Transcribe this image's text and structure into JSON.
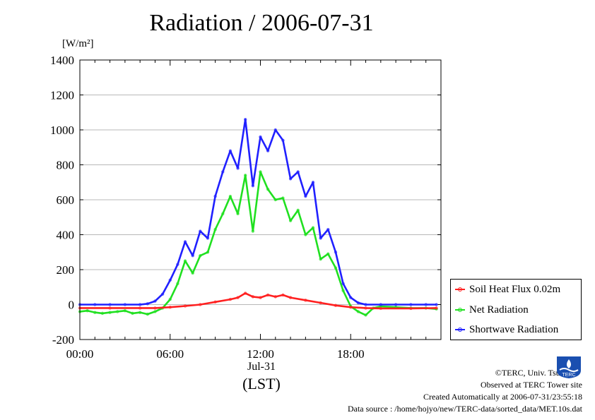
{
  "chart_data": {
    "type": "line",
    "title": "Radiation / 2006-07-31",
    "ylabel": "[W/m²]",
    "xlabel": "(LST)",
    "x_date_label": "Jul-31",
    "ylim": [
      -200,
      1400
    ],
    "xlim": [
      "00:00",
      "24:00"
    ],
    "yticks": [
      -200,
      0,
      200,
      400,
      600,
      800,
      1000,
      1200,
      1400
    ],
    "xticks": [
      "00:00",
      "06:00",
      "12:00",
      "18:00"
    ],
    "grid": true,
    "legend_position": "right",
    "series": [
      {
        "name": "Soil Heat Flux 0.02m",
        "color": "#ff2020",
        "x_hours": [
          0,
          2,
          4,
          5,
          6,
          7,
          8,
          9,
          10,
          10.5,
          11,
          11.5,
          12,
          12.5,
          13,
          13.5,
          14,
          15,
          16,
          17,
          18,
          19,
          20,
          22,
          23.7
        ],
        "values": [
          -20,
          -20,
          -20,
          -20,
          -15,
          -8,
          0,
          15,
          30,
          40,
          65,
          45,
          40,
          55,
          45,
          55,
          40,
          25,
          10,
          -5,
          -15,
          -20,
          -22,
          -22,
          -20
        ]
      },
      {
        "name": "Net Radiation",
        "color": "#20e020",
        "x_hours": [
          0,
          0.5,
          1,
          1.5,
          2,
          2.5,
          3,
          3.5,
          4,
          4.5,
          5,
          5.5,
          6,
          6.5,
          7,
          7.5,
          8,
          8.5,
          9,
          9.5,
          10,
          10.5,
          11,
          11.5,
          12,
          12.5,
          13,
          13.5,
          14,
          14.5,
          15,
          15.5,
          16,
          16.5,
          17,
          17.5,
          18,
          18.5,
          19,
          19.5,
          20,
          21,
          22,
          23,
          23.7
        ],
        "values": [
          -40,
          -35,
          -45,
          -50,
          -45,
          -40,
          -35,
          -50,
          -45,
          -55,
          -40,
          -20,
          30,
          120,
          250,
          180,
          280,
          300,
          430,
          520,
          620,
          520,
          740,
          420,
          760,
          660,
          600,
          610,
          480,
          540,
          400,
          440,
          260,
          290,
          210,
          80,
          -10,
          -40,
          -60,
          -20,
          -10,
          -15,
          -20,
          -20,
          -25
        ]
      },
      {
        "name": "Shortwave Radiation",
        "color": "#2020ff",
        "x_hours": [
          0,
          1,
          2,
          3,
          4,
          4.5,
          5,
          5.5,
          6,
          6.5,
          7,
          7.5,
          8,
          8.5,
          9,
          9.5,
          10,
          10.5,
          11,
          11.5,
          12,
          12.5,
          13,
          13.5,
          14,
          14.5,
          15,
          15.5,
          16,
          16.5,
          17,
          17.5,
          18,
          18.5,
          19,
          20,
          21,
          22,
          23,
          23.7
        ],
        "values": [
          0,
          0,
          0,
          0,
          0,
          5,
          20,
          60,
          140,
          230,
          360,
          280,
          420,
          380,
          620,
          760,
          880,
          780,
          1060,
          680,
          960,
          880,
          1000,
          940,
          720,
          760,
          620,
          700,
          380,
          430,
          300,
          120,
          40,
          10,
          0,
          0,
          0,
          0,
          0,
          0
        ]
      }
    ]
  },
  "credits": {
    "copyright": "©TERC, Univ. Tsukuba",
    "observed": "Observed at TERC Tower site",
    "created": "Created Automatically at 2006-07-31/23:55:18",
    "source": "Data source : /home/hojyo/new/TERC-data/sorted_data/MET.10s.dat"
  },
  "logo": {
    "text": "TERC",
    "color": "#1a4fb0"
  }
}
